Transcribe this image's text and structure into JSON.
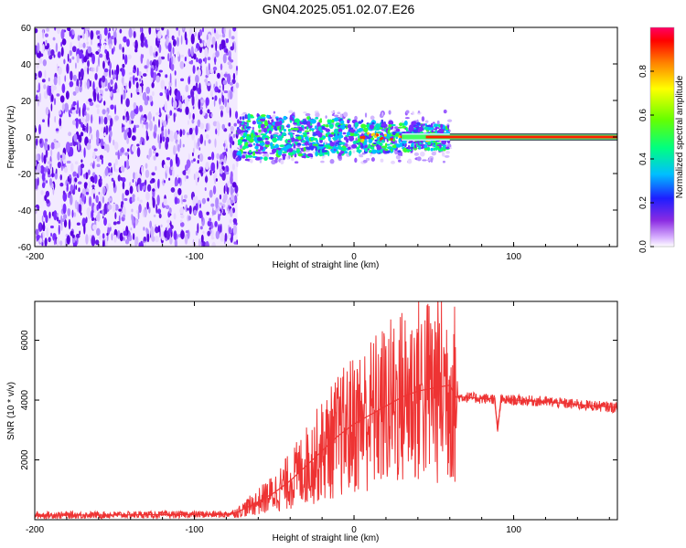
{
  "figure": {
    "title": "GN04.2025.051.02.07.E26"
  },
  "chart_data": [
    {
      "type": "heatmap",
      "xlabel": "Height of straight line (km)",
      "ylabel": "Frequency (Hz)",
      "xlim": [
        -200,
        165
      ],
      "ylim": [
        -60,
        60
      ],
      "xticks": [
        "-200",
        "-100",
        "0",
        "100"
      ],
      "yticks": [
        "60",
        "40",
        "20",
        "0",
        "-20",
        "-40",
        "-60"
      ],
      "xtick_values": [
        -200,
        -100,
        0,
        100
      ],
      "ytick_values": [
        60,
        40,
        20,
        0,
        -20,
        -40,
        -60
      ],
      "colorbar": {
        "label": "Normalized spectral amplitude",
        "range": [
          0,
          1
        ],
        "ticks": [
          "0.0",
          "0.2",
          "0.4",
          "0.6",
          "0.8"
        ],
        "tick_values": [
          0,
          0.2,
          0.4,
          0.6,
          0.8
        ]
      },
      "regions": [
        {
          "description": "diffuse low-amplitude noise",
          "x_range": [
            -200,
            -73
          ],
          "freq_range": [
            -60,
            60
          ],
          "amplitude": 0.15
        },
        {
          "description": "signal band",
          "x_range": [
            -73,
            60
          ],
          "freq_range": [
            -8,
            8
          ],
          "amplitude": 0.45
        },
        {
          "description": "narrow carrier line",
          "x_range": [
            60,
            165
          ],
          "freq_range": [
            -2,
            2
          ],
          "amplitude": 0.9
        }
      ]
    },
    {
      "type": "line",
      "xlabel": "Height of straight line (km)",
      "ylabel": "SNR (10 * v/v)",
      "xlim": [
        -200,
        165
      ],
      "ylim": [
        0,
        7300
      ],
      "xticks": [
        "-200",
        "-100",
        "0",
        "100"
      ],
      "yticks": [
        "2000",
        "4000",
        "6000"
      ],
      "xtick_values": [
        -200,
        -100,
        0,
        100
      ],
      "ytick_values": [
        2000,
        4000,
        6000
      ],
      "color": "#ee3333",
      "series": [
        {
          "x": [
            -200,
            -150,
            -110,
            -80,
            -73,
            -60,
            -50,
            -40,
            -30,
            -20,
            -10,
            0,
            10,
            20,
            30,
            40,
            50,
            60,
            64,
            70,
            80,
            88,
            90,
            92,
            100,
            120,
            140,
            165
          ],
          "y": [
            150,
            160,
            170,
            180,
            250,
            600,
            900,
            1300,
            1800,
            2300,
            2800,
            3200,
            3500,
            3800,
            4100,
            4300,
            4400,
            4500,
            4100,
            4100,
            4050,
            4050,
            3000,
            4000,
            4000,
            3950,
            3850,
            3750
          ]
        }
      ]
    }
  ]
}
